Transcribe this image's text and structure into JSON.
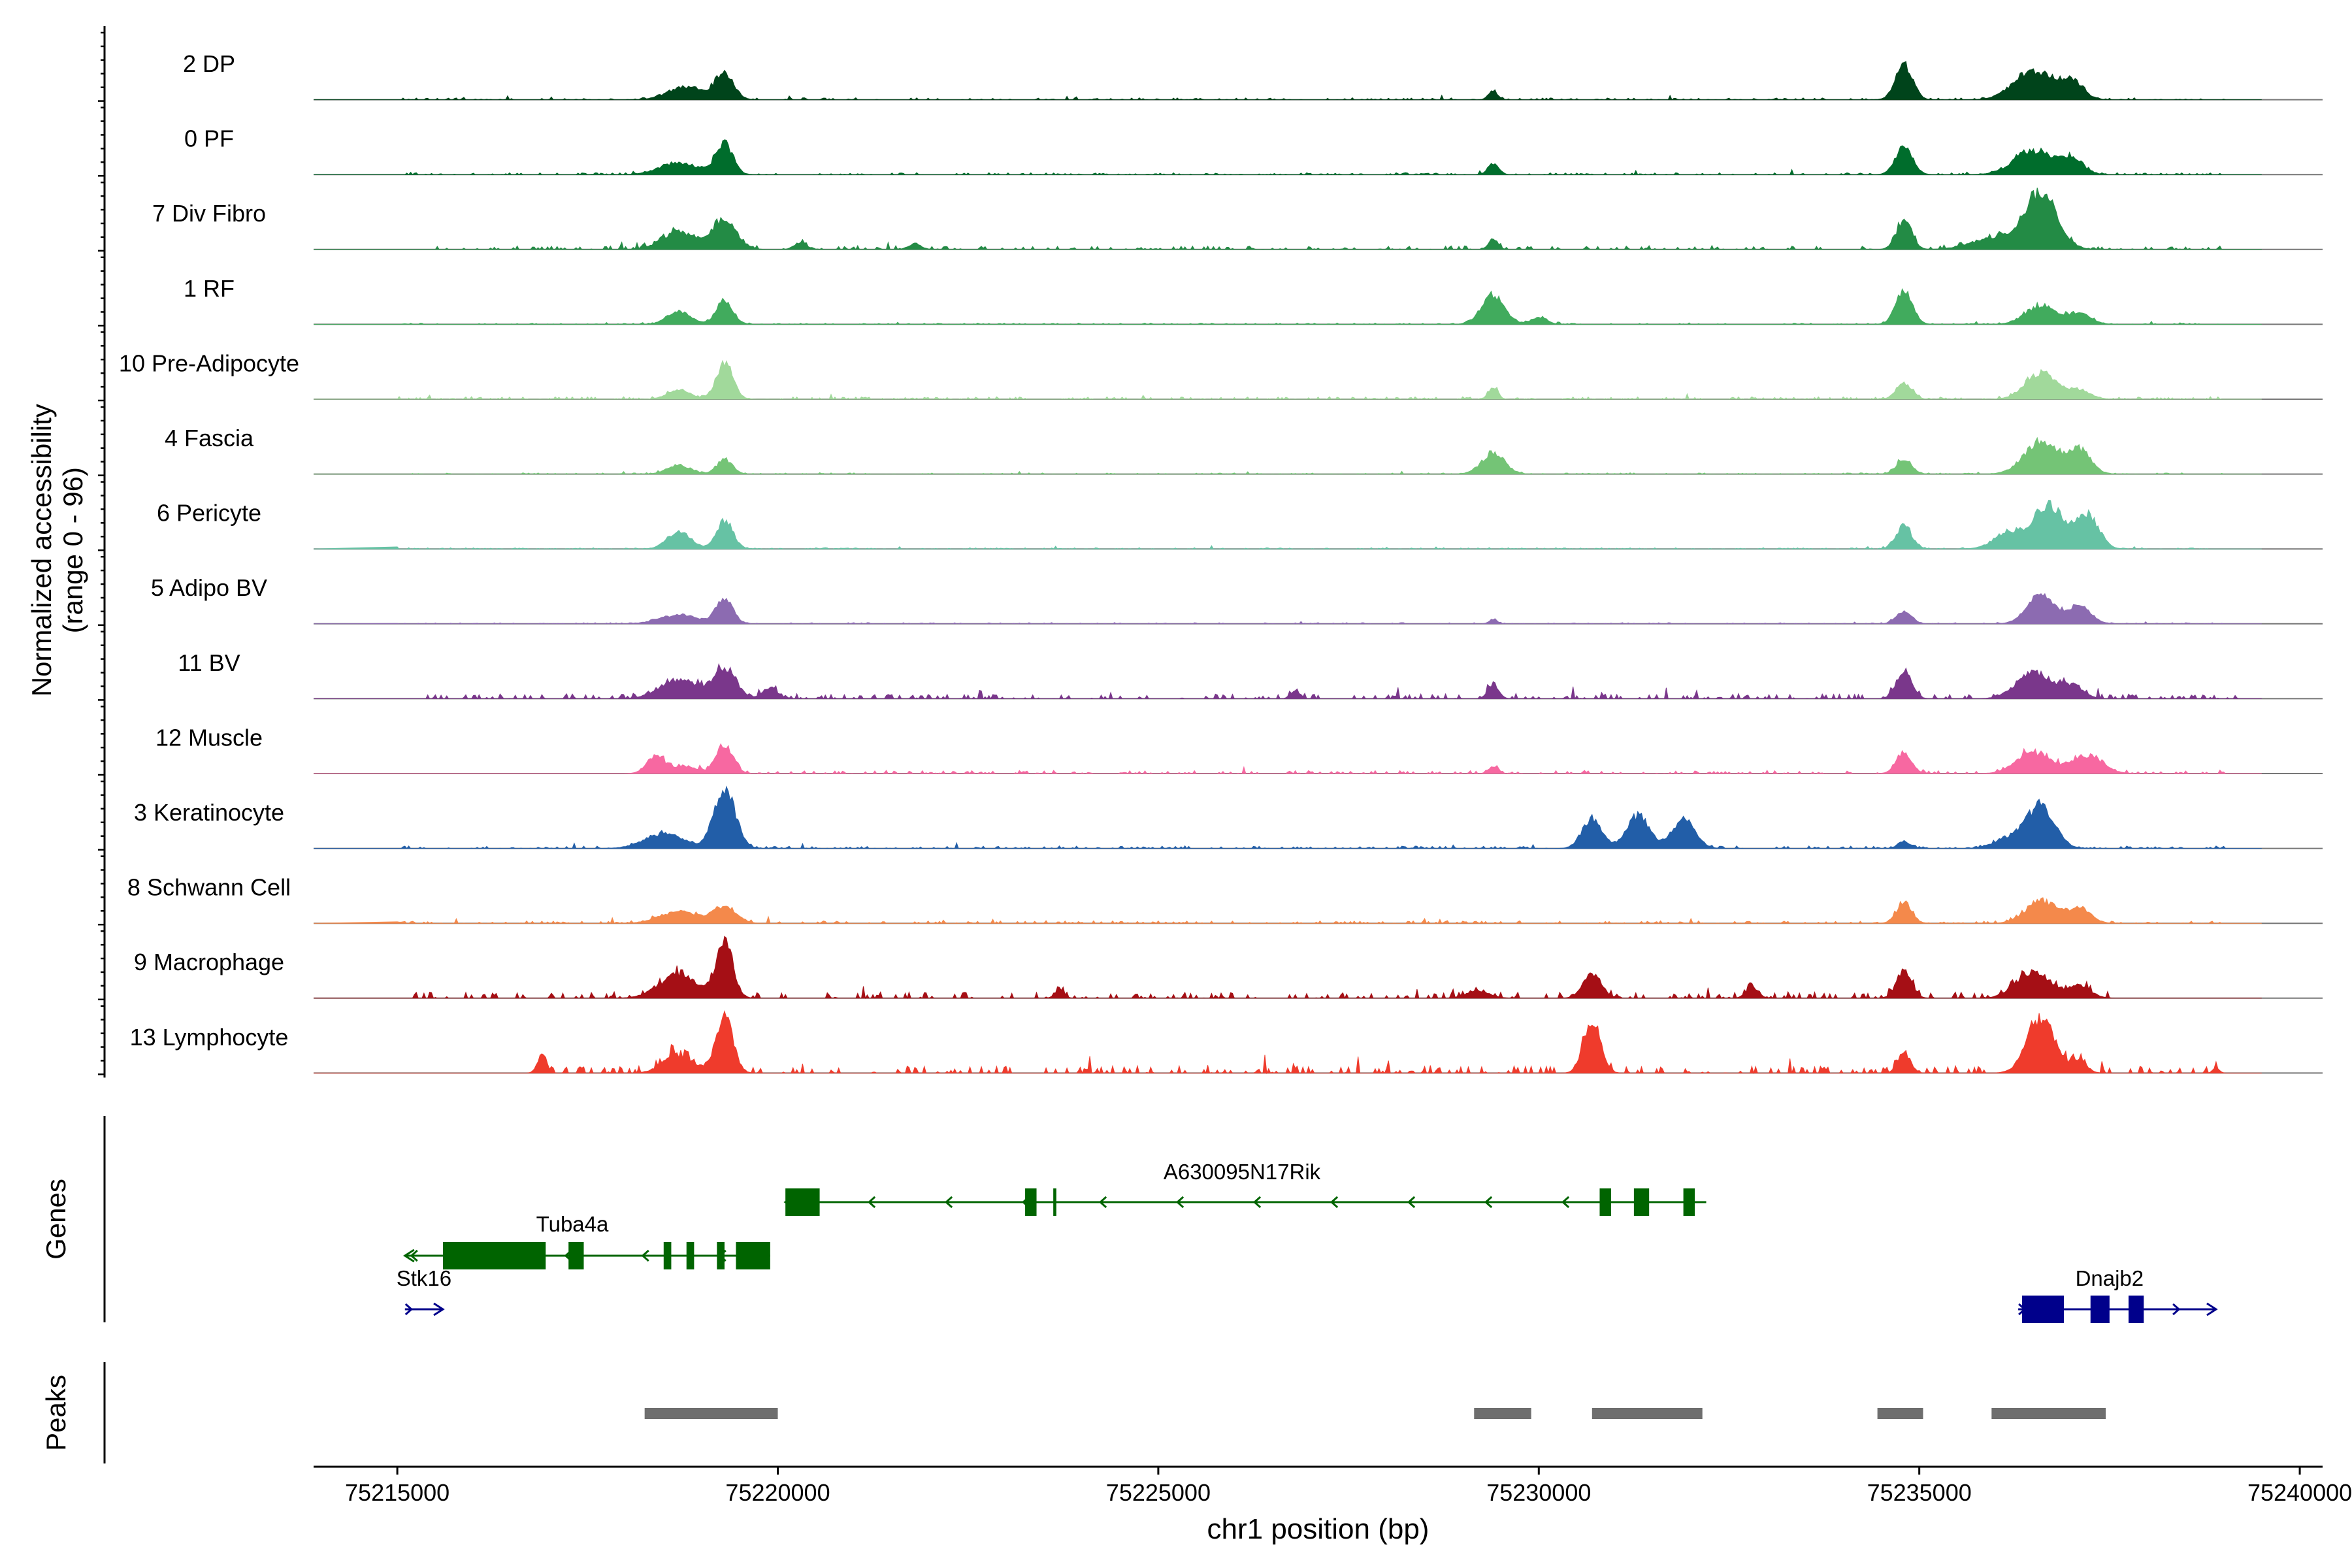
{
  "chart_data": {
    "type": "area",
    "region": {
      "chrom": "chr1",
      "start": 75213900,
      "end": 75240300
    },
    "y_axis_label_line1": "Normalized accessibility",
    "y_axis_label_line2": "(range 0 - 96)",
    "y_range": [
      0,
      96
    ],
    "xlabel": "chr1 position (bp)",
    "x_ticks": [
      {
        "value": 75215000,
        "label": "75215000"
      },
      {
        "value": 75220000,
        "label": "75220000"
      },
      {
        "value": 75225000,
        "label": "75225000"
      },
      {
        "value": 75230000,
        "label": "75230000"
      },
      {
        "value": 75235000,
        "label": "75235000"
      },
      {
        "value": 75240000,
        "label": "75240000"
      }
    ],
    "tracks": [
      {
        "name": "2 DP",
        "color": "#00441b",
        "peaks": [
          [
            75218800,
            0.22,
            230
          ],
          [
            75219300,
            0.45,
            120
          ],
          [
            75229400,
            0.15,
            60
          ],
          [
            75234800,
            0.6,
            110
          ],
          [
            75236500,
            0.5,
            250
          ],
          [
            75237000,
            0.3,
            150
          ]
        ],
        "noise": 0.03,
        "noise_range": [
          75215000,
          75239000
        ]
      },
      {
        "name": "0 PF",
        "color": "#006d2c",
        "peaks": [
          [
            75218700,
            0.2,
            250
          ],
          [
            75219300,
            0.52,
            110
          ],
          [
            75229400,
            0.18,
            70
          ],
          [
            75234800,
            0.48,
            110
          ],
          [
            75236500,
            0.4,
            250
          ],
          [
            75237000,
            0.25,
            150
          ]
        ],
        "noise": 0.03,
        "noise_range": [
          75215000,
          75239000
        ]
      },
      {
        "name": "7 Div Fibro",
        "color": "#238b45",
        "peaks": [
          [
            75218700,
            0.3,
            220
          ],
          [
            75219300,
            0.48,
            160
          ],
          [
            75220300,
            0.12,
            80
          ],
          [
            75221800,
            0.1,
            80
          ],
          [
            75229400,
            0.18,
            60
          ],
          [
            75234800,
            0.48,
            100
          ],
          [
            75236600,
            0.95,
            210
          ],
          [
            75236000,
            0.2,
            300
          ]
        ],
        "noise": 0.06,
        "noise_range": [
          75215500,
          75239000
        ]
      },
      {
        "name": "1 RF",
        "color": "#41ab5d",
        "peaks": [
          [
            75218700,
            0.22,
            150
          ],
          [
            75219300,
            0.4,
            110
          ],
          [
            75229400,
            0.5,
            150
          ],
          [
            75230000,
            0.12,
            100
          ],
          [
            75234800,
            0.55,
            110
          ],
          [
            75236600,
            0.32,
            200
          ],
          [
            75237100,
            0.18,
            150
          ]
        ],
        "noise": 0.02,
        "noise_range": [
          75215000,
          75239000
        ]
      },
      {
        "name": "10 Pre-Adipocyte",
        "color": "#a1d99b",
        "peaks": [
          [
            75218700,
            0.15,
            150
          ],
          [
            75219300,
            0.6,
            110
          ],
          [
            75229400,
            0.2,
            60
          ],
          [
            75234800,
            0.28,
            100
          ],
          [
            75236600,
            0.45,
            200
          ],
          [
            75237100,
            0.15,
            150
          ]
        ],
        "noise": 0.04,
        "noise_range": [
          75215000,
          75239000
        ]
      },
      {
        "name": "4 Fascia",
        "color": "#74c476",
        "peaks": [
          [
            75218700,
            0.15,
            150
          ],
          [
            75219300,
            0.25,
            100
          ],
          [
            75229400,
            0.35,
            150
          ],
          [
            75234800,
            0.25,
            100
          ],
          [
            75236600,
            0.55,
            220
          ],
          [
            75237100,
            0.4,
            150
          ]
        ],
        "noise": 0.02,
        "noise_range": [
          75215000,
          75239000
        ]
      },
      {
        "name": "6 Pericyte",
        "color": "#66c2a4",
        "peaks": [
          [
            75218700,
            0.3,
            150
          ],
          [
            75219300,
            0.48,
            110
          ],
          [
            75234800,
            0.4,
            100
          ],
          [
            75236200,
            0.3,
            200
          ],
          [
            75236700,
            0.75,
            180
          ],
          [
            75237200,
            0.6,
            150
          ]
        ],
        "noise": 0.02,
        "noise_range": [
          75215000,
          75239000
        ]
      },
      {
        "name": "5 Adipo BV",
        "color": "#8c6bb1",
        "peaks": [
          [
            75218700,
            0.15,
            250
          ],
          [
            75219300,
            0.42,
            110
          ],
          [
            75229400,
            0.08,
            50
          ],
          [
            75234800,
            0.2,
            100
          ],
          [
            75236600,
            0.5,
            180
          ],
          [
            75237100,
            0.3,
            150
          ]
        ],
        "noise": 0.02,
        "noise_range": [
          75215000,
          75239000
        ]
      },
      {
        "name": "11 BV",
        "color": "#7a378b",
        "peaks": [
          [
            75218700,
            0.32,
            250
          ],
          [
            75219300,
            0.48,
            150
          ],
          [
            75219900,
            0.18,
            100
          ],
          [
            75229400,
            0.25,
            70
          ],
          [
            75234800,
            0.45,
            100
          ],
          [
            75236500,
            0.45,
            220
          ],
          [
            75237000,
            0.22,
            150
          ],
          [
            75226800,
            0.14,
            60
          ]
        ],
        "noise": 0.08,
        "noise_range": [
          75215400,
          75239200
        ]
      },
      {
        "name": "12 Muscle",
        "color": "#f768a1",
        "peaks": [
          [
            75218400,
            0.3,
            120
          ],
          [
            75218800,
            0.12,
            150
          ],
          [
            75219300,
            0.5,
            110
          ],
          [
            75229400,
            0.12,
            60
          ],
          [
            75234800,
            0.35,
            100
          ],
          [
            75236500,
            0.35,
            220
          ],
          [
            75237200,
            0.3,
            200
          ]
        ],
        "noise": 0.05,
        "noise_range": [
          75218300,
          75239000
        ]
      },
      {
        "name": "3 Keratinocyte",
        "color": "#225ea8",
        "peaks": [
          [
            75218500,
            0.25,
            250
          ],
          [
            75219300,
            1.0,
            140
          ],
          [
            75230700,
            0.5,
            130
          ],
          [
            75231300,
            0.55,
            150
          ],
          [
            75231900,
            0.5,
            150
          ],
          [
            75234800,
            0.12,
            80
          ],
          [
            75236600,
            0.7,
            180
          ],
          [
            75236200,
            0.18,
            200
          ]
        ],
        "noise": 0.04,
        "noise_range": [
          75215000,
          75239000
        ]
      },
      {
        "name": "8 Schwann Cell",
        "color": "#f4894b",
        "peaks": [
          [
            75218700,
            0.2,
            250
          ],
          [
            75219300,
            0.28,
            150
          ],
          [
            75234800,
            0.35,
            100
          ],
          [
            75236600,
            0.38,
            200
          ],
          [
            75237100,
            0.25,
            150
          ]
        ],
        "noise": 0.04,
        "noise_range": [
          75215000,
          75239000
        ]
      },
      {
        "name": "9 Macrophage",
        "color": "#a50f15",
        "peaks": [
          [
            75218700,
            0.4,
            250
          ],
          [
            75219300,
            0.95,
            110
          ],
          [
            75223700,
            0.15,
            60
          ],
          [
            75230700,
            0.4,
            120
          ],
          [
            75229200,
            0.12,
            150
          ],
          [
            75232800,
            0.18,
            80
          ],
          [
            75234800,
            0.45,
            100
          ],
          [
            75236500,
            0.45,
            220
          ],
          [
            75237100,
            0.2,
            150
          ]
        ],
        "noise": 0.1,
        "noise_range": [
          75215200,
          75237500
        ]
      },
      {
        "name": "13 Lymphocyte",
        "color": "#ef3b2c",
        "peaks": [
          [
            75216900,
            0.3,
            60
          ],
          [
            75218700,
            0.3,
            200
          ],
          [
            75219300,
            1.0,
            110
          ],
          [
            75230700,
            0.85,
            110
          ],
          [
            75234800,
            0.35,
            80
          ],
          [
            75236600,
            0.95,
            180
          ],
          [
            75237100,
            0.2,
            100
          ],
          [
            75238900,
            0.1,
            40
          ]
        ],
        "noise": 0.12,
        "noise_range": [
          75216800,
          75239000
        ]
      }
    ],
    "genes": [
      {
        "name": "A630095N17Rik",
        "strand": "-",
        "color": "#006400",
        "row": 1,
        "start": 75220100,
        "end": 75232200,
        "exons": [
          [
            75220100,
            75220550
          ],
          [
            75223250,
            75223400
          ],
          [
            75223620,
            75223660
          ],
          [
            75230800,
            75230950
          ],
          [
            75231250,
            75231450
          ],
          [
            75231900,
            75232050
          ]
        ]
      },
      {
        "name": "Tuba4a",
        "strand": "-",
        "color": "#006400",
        "row": 2,
        "start": 75215100,
        "end": 75219900,
        "exons": [
          [
            75215600,
            75216950
          ],
          [
            75217250,
            75217450
          ],
          [
            75218500,
            75218600
          ],
          [
            75218800,
            75218900
          ],
          [
            75219200,
            75219300
          ],
          [
            75219450,
            75219900
          ]
        ]
      },
      {
        "name": "Stk16",
        "strand": "+",
        "color": "#00008b",
        "row": 3,
        "start": 75215100,
        "end": 75215600,
        "exons": []
      },
      {
        "name": "Dnajb2",
        "strand": "+",
        "color": "#00008b",
        "row": 3,
        "start": 75236300,
        "end": 75238900,
        "exons": [
          [
            75236350,
            75236900
          ],
          [
            75237250,
            75237500
          ],
          [
            75237750,
            75237950
          ]
        ]
      }
    ],
    "peaks": [
      {
        "start": 75218250,
        "end": 75220000
      },
      {
        "start": 75229150,
        "end": 75229900
      },
      {
        "start": 75230700,
        "end": 75232150
      },
      {
        "start": 75234450,
        "end": 75235050
      },
      {
        "start": 75235950,
        "end": 75237450
      }
    ],
    "genes_panel_label": "Genes",
    "peaks_panel_label": "Peaks"
  }
}
